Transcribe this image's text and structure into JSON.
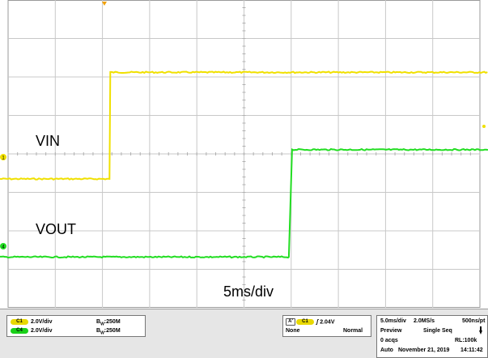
{
  "annotations": {
    "vin": "VIN",
    "vout": "VOUT",
    "timebase": "5ms/div"
  },
  "markers": {
    "ch1": "1",
    "ch4": "4"
  },
  "channels": [
    {
      "badge": "C1",
      "scale": "2.0V/div",
      "bw": "250M",
      "color": "#e8d800"
    },
    {
      "badge": "C4",
      "scale": "2.0V/div",
      "bw": "250M",
      "color": "#18d018"
    }
  ],
  "trigger": {
    "mode_badge": "A'",
    "source": "C1",
    "level": "2.04V",
    "coupling": "None",
    "mode": "Normal"
  },
  "acquisition": {
    "timebase": "5.0ms/div",
    "rate": "2.0MS/s",
    "resolution": "500ns/pt",
    "state": "Preview",
    "seq": "Single Seq",
    "acqs": "0 acqs",
    "record": "RL:100k",
    "auto": "Auto",
    "date": "November 21, 2019",
    "time": "14:11:42"
  },
  "chart_data": {
    "type": "line",
    "xlabel": "",
    "ylabel": "",
    "time_per_div": "5ms/div",
    "x_divisions": 10,
    "y_divisions": 8,
    "grid": true,
    "series": [
      {
        "name": "VIN",
        "color": "#f0e000",
        "step_div": 2.15,
        "low_div": 4.65,
        "high_div": 1.88
      },
      {
        "name": "VOUT",
        "color": "#22dd22",
        "step_div": 5.95,
        "low_div": 6.68,
        "high_div": 3.89
      }
    ]
  }
}
